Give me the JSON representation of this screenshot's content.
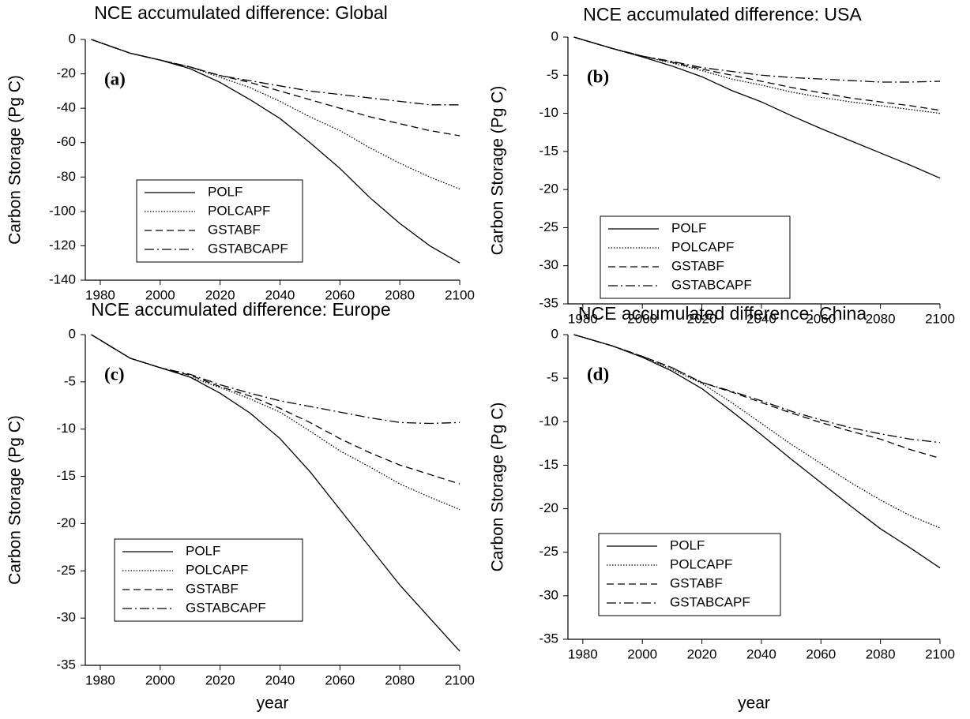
{
  "chart_data": [
    {
      "type": "line",
      "title": "NCE accumulated difference: Global",
      "label": "(a)",
      "ylabel": "Carbon Storage (Pg C)",
      "x": [
        1977,
        1990,
        2000,
        2010,
        2020,
        2030,
        2040,
        2050,
        2060,
        2070,
        2080,
        2090,
        2100
      ],
      "xlim": [
        1975,
        2100
      ],
      "xticks": [
        1980,
        2000,
        2020,
        2040,
        2060,
        2080,
        2100
      ],
      "ylim": [
        -140,
        0
      ],
      "yticks": [
        0,
        -20,
        -40,
        -60,
        -80,
        -100,
        -120,
        -140
      ],
      "legend": "lower left",
      "series": [
        {
          "name": "POLF",
          "color": "#000000",
          "dash": "solid",
          "values": [
            0,
            -8,
            -12,
            -17,
            -25,
            -35,
            -46,
            -60,
            -75,
            -92,
            -107,
            -120,
            -130
          ]
        },
        {
          "name": "POLCAPF",
          "color": "#000000",
          "dash": "dotted",
          "values": [
            0,
            -8,
            -12,
            -16,
            -22,
            -28,
            -36,
            -45,
            -53,
            -63,
            -72,
            -80,
            -87
          ]
        },
        {
          "name": "GSTABF",
          "color": "#000000",
          "dash": "dashed",
          "values": [
            0,
            -8,
            -12,
            -16,
            -21,
            -25,
            -30,
            -35,
            -40,
            -45,
            -49,
            -53,
            -56
          ]
        },
        {
          "name": "GSTABCAPF",
          "color": "#000000",
          "dash": "dashdot",
          "values": [
            0,
            -8,
            -12,
            -16,
            -21,
            -24,
            -27,
            -30,
            -32,
            -34,
            -36,
            -38,
            -38
          ]
        }
      ]
    },
    {
      "type": "line",
      "title": "NCE accumulated difference: USA",
      "label": "(b)",
      "ylabel": "Carbon Storage (Pg C)",
      "x": [
        1977,
        1990,
        2000,
        2010,
        2020,
        2030,
        2040,
        2050,
        2060,
        2070,
        2080,
        2090,
        2100
      ],
      "xlim": [
        1975,
        2100
      ],
      "xticks": [
        1980,
        2000,
        2020,
        2040,
        2060,
        2080,
        2100
      ],
      "ylim": [
        -35,
        0
      ],
      "yticks": [
        0,
        -5,
        -10,
        -15,
        -20,
        -25,
        -30,
        -35
      ],
      "legend": "lower left",
      "series": [
        {
          "name": "POLF",
          "color": "#000000",
          "dash": "solid",
          "values": [
            0,
            -1.5,
            -2.6,
            -3.8,
            -5.2,
            -7,
            -8.5,
            -10.3,
            -12,
            -13.6,
            -15.2,
            -16.8,
            -18.5
          ]
        },
        {
          "name": "POLCAPF",
          "color": "#000000",
          "dash": "dotted",
          "values": [
            0,
            -1.5,
            -2.5,
            -3.4,
            -4.4,
            -5.5,
            -6.3,
            -7.2,
            -7.9,
            -8.5,
            -9,
            -9.5,
            -10
          ]
        },
        {
          "name": "GSTABF",
          "color": "#000000",
          "dash": "dashed",
          "values": [
            0,
            -1.5,
            -2.5,
            -3.3,
            -4.2,
            -5,
            -5.8,
            -6.6,
            -7.3,
            -8,
            -8.5,
            -9,
            -9.6
          ]
        },
        {
          "name": "GSTABCAPF",
          "color": "#000000",
          "dash": "dashdot",
          "values": [
            0,
            -1.5,
            -2.5,
            -3.2,
            -4,
            -4.5,
            -5,
            -5.3,
            -5.5,
            -5.7,
            -5.9,
            -5.9,
            -5.8
          ]
        }
      ]
    },
    {
      "type": "line",
      "title": "NCE accumulated difference: Europe",
      "label": "(c)",
      "ylabel": "Carbon Storage (Pg C)",
      "xlabel": "year",
      "x": [
        1977,
        1990,
        2000,
        2010,
        2020,
        2030,
        2040,
        2050,
        2060,
        2070,
        2080,
        2090,
        2100
      ],
      "xlim": [
        1975,
        2100
      ],
      "xticks": [
        1980,
        2000,
        2020,
        2040,
        2060,
        2080,
        2100
      ],
      "ylim": [
        -35,
        0
      ],
      "yticks": [
        0,
        -5,
        -10,
        -15,
        -20,
        -25,
        -30,
        -35
      ],
      "legend": "lower left",
      "series": [
        {
          "name": "POLF",
          "color": "#000000",
          "dash": "solid",
          "values": [
            0,
            -2.5,
            -3.5,
            -4.5,
            -6.2,
            -8.3,
            -11,
            -14.5,
            -18.5,
            -22.5,
            -26.5,
            -30,
            -33.5
          ]
        },
        {
          "name": "POLCAPF",
          "color": "#000000",
          "dash": "dotted",
          "values": [
            0,
            -2.5,
            -3.5,
            -4.5,
            -5.6,
            -6.8,
            -8.2,
            -10.2,
            -12.3,
            -14,
            -15.8,
            -17.2,
            -18.5
          ]
        },
        {
          "name": "GSTABF",
          "color": "#000000",
          "dash": "dashed",
          "values": [
            0,
            -2.5,
            -3.5,
            -4.3,
            -5.5,
            -6.5,
            -7.8,
            -9.3,
            -11,
            -12.5,
            -13.8,
            -14.8,
            -15.8
          ]
        },
        {
          "name": "GSTABCAPF",
          "color": "#000000",
          "dash": "dashdot",
          "values": [
            0,
            -2.5,
            -3.5,
            -4.2,
            -5.3,
            -6.2,
            -7,
            -7.6,
            -8.2,
            -8.8,
            -9.3,
            -9.4,
            -9.3
          ]
        }
      ]
    },
    {
      "type": "line",
      "title": "NCE accumulated difference: China",
      "label": "(d)",
      "ylabel": "Carbon Storage (Pg C)",
      "xlabel": "year",
      "x": [
        1977,
        1990,
        2000,
        2010,
        2020,
        2030,
        2040,
        2050,
        2060,
        2070,
        2080,
        2090,
        2100
      ],
      "xlim": [
        1975,
        2100
      ],
      "xticks": [
        1980,
        2000,
        2020,
        2040,
        2060,
        2080,
        2100
      ],
      "ylim": [
        -35,
        0
      ],
      "yticks": [
        0,
        -5,
        -10,
        -15,
        -20,
        -25,
        -30,
        -35
      ],
      "legend": "lower left",
      "series": [
        {
          "name": "POLF",
          "color": "#000000",
          "dash": "solid",
          "values": [
            0,
            -1.3,
            -2.6,
            -4.2,
            -6.2,
            -8.8,
            -11.5,
            -14.3,
            -17,
            -19.7,
            -22.3,
            -24.5,
            -26.8
          ]
        },
        {
          "name": "POLCAPF",
          "color": "#000000",
          "dash": "dotted",
          "values": [
            0,
            -1.3,
            -2.6,
            -4,
            -5.6,
            -7.8,
            -10.2,
            -12.6,
            -14.8,
            -17,
            -19,
            -20.8,
            -22.2
          ]
        },
        {
          "name": "GSTABF",
          "color": "#000000",
          "dash": "dashed",
          "values": [
            0,
            -1.3,
            -2.5,
            -3.8,
            -5.5,
            -6.6,
            -7.8,
            -9,
            -10.1,
            -11.1,
            -12,
            -13.2,
            -14.2
          ]
        },
        {
          "name": "GSTABCAPF",
          "color": "#000000",
          "dash": "dashdot",
          "values": [
            0,
            -1.3,
            -2.5,
            -3.8,
            -5.5,
            -6.5,
            -7.6,
            -8.8,
            -9.8,
            -10.7,
            -11.4,
            -12,
            -12.4
          ]
        }
      ]
    }
  ]
}
